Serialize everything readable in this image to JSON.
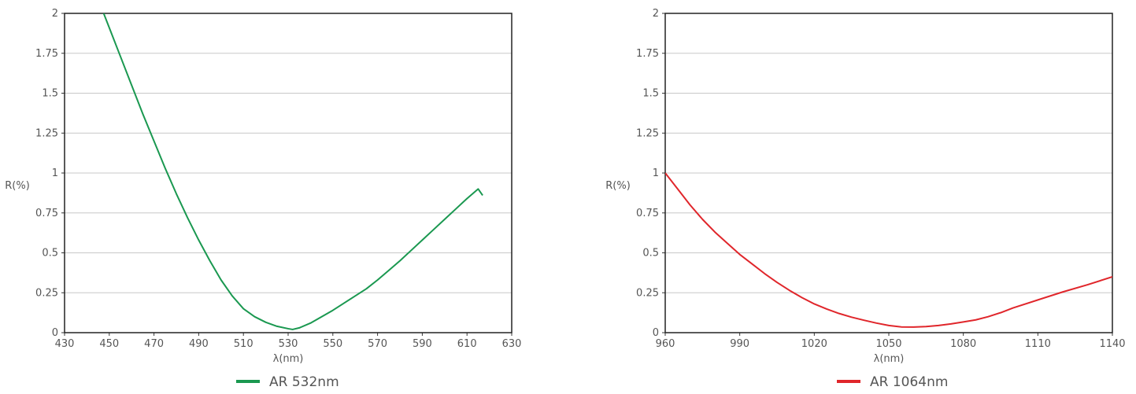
{
  "chart_data": [
    {
      "type": "line",
      "title": "",
      "xlabel": "λ(nm)",
      "ylabel": "R(%)",
      "xlim": [
        430,
        630
      ],
      "ylim": [
        0,
        2
      ],
      "x_ticks": [
        "430",
        "450",
        "470",
        "490",
        "510",
        "530",
        "550",
        "570",
        "590",
        "610",
        "630"
      ],
      "y_ticks": [
        "0",
        "0.25",
        "0.5",
        "0.75",
        "1",
        "1.25",
        "1.5",
        "1.75",
        "2"
      ],
      "grid": "horizontal",
      "legend_position": "bottom-center",
      "series": [
        {
          "name": "AR 532nm",
          "color": "#1a9850",
          "x": [
            447.5,
            450,
            455,
            460,
            465,
            470,
            475,
            480,
            485,
            490,
            495,
            500,
            505,
            510,
            515,
            520,
            525,
            530,
            532,
            535,
            540,
            545,
            550,
            555,
            560,
            565,
            570,
            575,
            580,
            585,
            590,
            595,
            600,
            605,
            610,
            615,
            617
          ],
          "y": [
            2.0,
            1.91,
            1.73,
            1.55,
            1.37,
            1.2,
            1.03,
            0.87,
            0.72,
            0.58,
            0.45,
            0.33,
            0.23,
            0.15,
            0.1,
            0.065,
            0.04,
            0.025,
            0.02,
            0.03,
            0.06,
            0.1,
            0.14,
            0.185,
            0.23,
            0.275,
            0.33,
            0.39,
            0.45,
            0.515,
            0.58,
            0.645,
            0.71,
            0.775,
            0.84,
            0.9,
            0.86
          ]
        }
      ]
    },
    {
      "type": "line",
      "title": "",
      "xlabel": "λ(nm)",
      "ylabel": "R(%)",
      "xlim": [
        960,
        1140
      ],
      "ylim": [
        0,
        2
      ],
      "x_ticks": [
        "960",
        "990",
        "1020",
        "1050",
        "1080",
        "1110",
        "1140"
      ],
      "y_ticks": [
        "0",
        "0.25",
        "0.5",
        "0.75",
        "1",
        "1.25",
        "1.5",
        "1.75",
        "2"
      ],
      "grid": "horizontal",
      "legend_position": "bottom-center",
      "series": [
        {
          "name": "AR 1064nm",
          "color": "#e0262b",
          "x": [
            960,
            965,
            970,
            975,
            980,
            985,
            990,
            995,
            1000,
            1005,
            1010,
            1015,
            1020,
            1025,
            1030,
            1035,
            1040,
            1045,
            1050,
            1055,
            1060,
            1065,
            1070,
            1075,
            1080,
            1085,
            1090,
            1095,
            1100,
            1110,
            1120,
            1130,
            1140
          ],
          "y": [
            1.0,
            0.9,
            0.8,
            0.71,
            0.63,
            0.56,
            0.49,
            0.43,
            0.37,
            0.315,
            0.265,
            0.22,
            0.18,
            0.148,
            0.12,
            0.097,
            0.078,
            0.06,
            0.045,
            0.036,
            0.035,
            0.038,
            0.045,
            0.055,
            0.067,
            0.08,
            0.1,
            0.125,
            0.155,
            0.205,
            0.255,
            0.3,
            0.35
          ]
        }
      ]
    }
  ]
}
